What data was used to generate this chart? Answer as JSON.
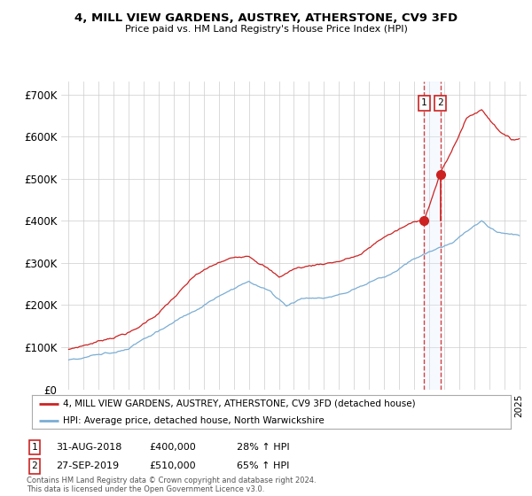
{
  "title": "4, MILL VIEW GARDENS, AUSTREY, ATHERSTONE, CV9 3FD",
  "subtitle": "Price paid vs. HM Land Registry's House Price Index (HPI)",
  "ylabel_ticks": [
    "£0",
    "£100K",
    "£200K",
    "£300K",
    "£400K",
    "£500K",
    "£600K",
    "£700K"
  ],
  "ytick_vals": [
    0,
    100000,
    200000,
    300000,
    400000,
    500000,
    600000,
    700000
  ],
  "ylim": [
    0,
    730000
  ],
  "xlim_start": 1994.5,
  "xlim_end": 2025.5,
  "hpi_color": "#7aadd4",
  "price_color": "#cc2222",
  "dashed_color": "#cc2222",
  "shade_color": "#ddeeff",
  "transaction1_date": 2018.67,
  "transaction1_price": 400000,
  "transaction1_label": "1",
  "transaction2_date": 2019.75,
  "transaction2_price": 510000,
  "transaction2_label": "2",
  "legend_property": "4, MILL VIEW GARDENS, AUSTREY, ATHERSTONE, CV9 3FD (detached house)",
  "legend_hpi": "HPI: Average price, detached house, North Warwickshire",
  "footnote": "Contains HM Land Registry data © Crown copyright and database right 2024.\nThis data is licensed under the Open Government Licence v3.0.",
  "background_color": "#ffffff",
  "grid_color": "#cccccc"
}
